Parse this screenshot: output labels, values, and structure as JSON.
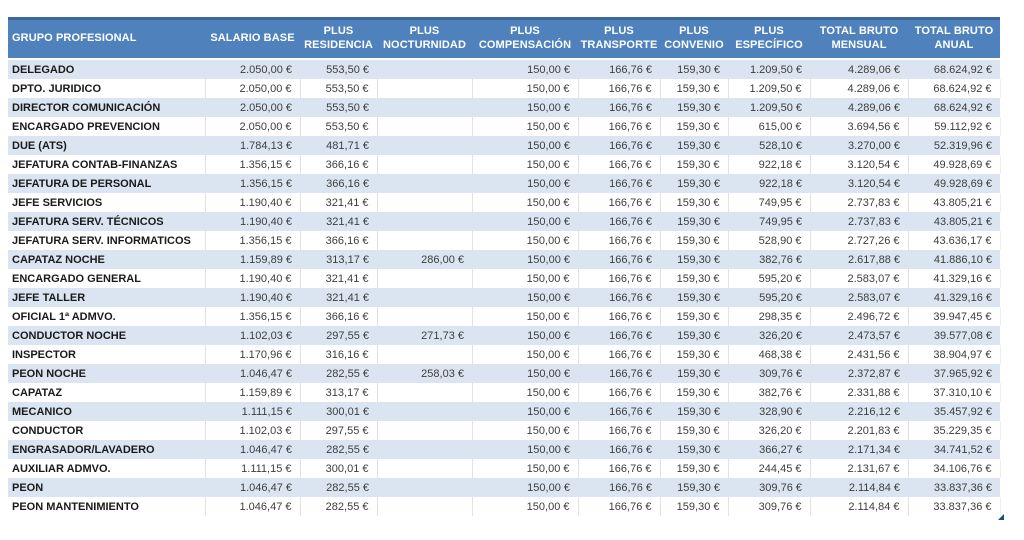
{
  "table": {
    "columns": [
      {
        "id": "grupo-profesional",
        "label": "GRUPO PROFESIONAL"
      },
      {
        "id": "salario-base",
        "label": "SALARIO BASE"
      },
      {
        "id": "plus-residencia",
        "label": "PLUS\nRESIDENCIA"
      },
      {
        "id": "plus-nocturnidad",
        "label": "PLUS\nNOCTURNIDAD"
      },
      {
        "id": "plus-compensacion",
        "label": "PLUS\nCOMPENSACIÓN"
      },
      {
        "id": "plus-transporte",
        "label": "PLUS\nTRANSPORTE"
      },
      {
        "id": "plus-convenio",
        "label": "PLUS\nCONVENIO"
      },
      {
        "id": "plus-especifico",
        "label": "PLUS\nESPECÍFICO"
      },
      {
        "id": "total-bruto-mensual",
        "label": "TOTAL BRUTO\nMENSUAL"
      },
      {
        "id": "total-bruto-anual",
        "label": "TOTAL BRUTO\nANUAL"
      }
    ],
    "rows": [
      {
        "group": "DELEGADO",
        "values": [
          "2.050,00 €",
          "553,50 €",
          "",
          "150,00 €",
          "166,76 €",
          "159,30 €",
          "1.209,50 €",
          "4.289,06 €",
          "68.624,92 €"
        ]
      },
      {
        "group": "DPTO. JURIDICO",
        "values": [
          "2.050,00 €",
          "553,50 €",
          "",
          "150,00 €",
          "166,76 €",
          "159,30 €",
          "1.209,50 €",
          "4.289,06 €",
          "68.624,92 €"
        ]
      },
      {
        "group": "DIRECTOR COMUNICACIÓN",
        "values": [
          "2.050,00 €",
          "553,50 €",
          "",
          "150,00 €",
          "166,76 €",
          "159,30 €",
          "1.209,50 €",
          "4.289,06 €",
          "68.624,92 €"
        ]
      },
      {
        "group": "ENCARGADO PREVENCION",
        "values": [
          "2.050,00 €",
          "553,50 €",
          "",
          "150,00 €",
          "166,76 €",
          "159,30 €",
          "615,00 €",
          "3.694,56 €",
          "59.112,92 €"
        ]
      },
      {
        "group": "DUE (ATS)",
        "values": [
          "1.784,13 €",
          "481,71 €",
          "",
          "150,00 €",
          "166,76 €",
          "159,30 €",
          "528,10 €",
          "3.270,00 €",
          "52.319,96 €"
        ]
      },
      {
        "group": "JEFATURA CONTAB-FINANZAS",
        "values": [
          "1.356,15 €",
          "366,16 €",
          "",
          "150,00 €",
          "166,76 €",
          "159,30 €",
          "922,18 €",
          "3.120,54 €",
          "49.928,69 €"
        ]
      },
      {
        "group": "JEFATURA DE PERSONAL",
        "values": [
          "1.356,15 €",
          "366,16 €",
          "",
          "150,00 €",
          "166,76 €",
          "159,30 €",
          "922,18 €",
          "3.120,54 €",
          "49.928,69 €"
        ]
      },
      {
        "group": "JEFE SERVICIOS",
        "values": [
          "1.190,40 €",
          "321,41 €",
          "",
          "150,00 €",
          "166,76 €",
          "159,30 €",
          "749,95 €",
          "2.737,83 €",
          "43.805,21 €"
        ]
      },
      {
        "group": "JEFATURA SERV. TÉCNICOS",
        "values": [
          "1.190,40 €",
          "321,41 €",
          "",
          "150,00 €",
          "166,76 €",
          "159,30 €",
          "749,95 €",
          "2.737,83 €",
          "43.805,21 €"
        ]
      },
      {
        "group": "JEFATURA SERV. INFORMATICOS",
        "values": [
          "1.356,15 €",
          "366,16 €",
          "",
          "150,00 €",
          "166,76 €",
          "159,30 €",
          "528,90 €",
          "2.727,26 €",
          "43.636,17 €"
        ]
      },
      {
        "group": "CAPATAZ NOCHE",
        "values": [
          "1.159,89 €",
          "313,17 €",
          "286,00 €",
          "150,00 €",
          "166,76 €",
          "159,30 €",
          "382,76 €",
          "2.617,88 €",
          "41.886,10 €"
        ]
      },
      {
        "group": "ENCARGADO GENERAL",
        "values": [
          "1.190,40 €",
          "321,41 €",
          "",
          "150,00 €",
          "166,76 €",
          "159,30 €",
          "595,20 €",
          "2.583,07 €",
          "41.329,16 €"
        ]
      },
      {
        "group": "JEFE TALLER",
        "values": [
          "1.190,40 €",
          "321,41 €",
          "",
          "150,00 €",
          "166,76 €",
          "159,30 €",
          "595,20 €",
          "2.583,07 €",
          "41.329,16 €"
        ]
      },
      {
        "group": "OFICIAL 1ª ADMVO.",
        "values": [
          "1.356,15 €",
          "366,16 €",
          "",
          "150,00 €",
          "166,76 €",
          "159,30 €",
          "298,35 €",
          "2.496,72 €",
          "39.947,45 €"
        ]
      },
      {
        "group": "CONDUCTOR NOCHE",
        "values": [
          "1.102,03 €",
          "297,55 €",
          "271,73 €",
          "150,00 €",
          "166,76 €",
          "159,30 €",
          "326,20 €",
          "2.473,57 €",
          "39.577,08 €"
        ]
      },
      {
        "group": "INSPECTOR",
        "values": [
          "1.170,96 €",
          "316,16 €",
          "",
          "150,00 €",
          "166,76 €",
          "159,30 €",
          "468,38 €",
          "2.431,56 €",
          "38.904,97 €"
        ]
      },
      {
        "group": "PEON NOCHE",
        "values": [
          "1.046,47 €",
          "282,55 €",
          "258,03 €",
          "150,00 €",
          "166,76 €",
          "159,30 €",
          "309,76 €",
          "2.372,87 €",
          "37.965,92 €"
        ]
      },
      {
        "group": "CAPATAZ",
        "values": [
          "1.159,89 €",
          "313,17 €",
          "",
          "150,00 €",
          "166,76 €",
          "159,30 €",
          "382,76 €",
          "2.331,88 €",
          "37.310,10 €"
        ]
      },
      {
        "group": "MECANICO",
        "values": [
          "1.111,15 €",
          "300,01 €",
          "",
          "150,00 €",
          "166,76 €",
          "159,30 €",
          "328,90 €",
          "2.216,12 €",
          "35.457,92 €"
        ]
      },
      {
        "group": "CONDUCTOR",
        "values": [
          "1.102,03 €",
          "297,55 €",
          "",
          "150,00 €",
          "166,76 €",
          "159,30 €",
          "326,20 €",
          "2.201,83 €",
          "35.229,35 €"
        ]
      },
      {
        "group": "ENGRASADOR/LAVADERO",
        "values": [
          "1.046,47 €",
          "282,55 €",
          "",
          "150,00 €",
          "166,76 €",
          "159,30 €",
          "366,27 €",
          "2.171,34 €",
          "34.741,52 €"
        ]
      },
      {
        "group": "AUXILIAR ADMVO.",
        "values": [
          "1.111,15 €",
          "300,01 €",
          "",
          "150,00 €",
          "166,76 €",
          "159,30 €",
          "244,45 €",
          "2.131,67 €",
          "34.106,76 €"
        ]
      },
      {
        "group": "PEON",
        "values": [
          "1.046,47 €",
          "282,55 €",
          "",
          "150,00 €",
          "166,76 €",
          "159,30 €",
          "309,76 €",
          "2.114,84 €",
          "33.837,36 €"
        ]
      },
      {
        "group": "PEON MANTENIMIENTO",
        "values": [
          "1.046,47 €",
          "282,55 €",
          "",
          "150,00 €",
          "166,76 €",
          "159,30 €",
          "309,76 €",
          "2.114,84 €",
          "33.837,36 €"
        ]
      }
    ],
    "colors": {
      "header_bg": "#4f81bd",
      "header_text": "#ffffff",
      "band_row_bg": "#dbe5f1",
      "plain_row_bg": "#ffffff",
      "resize_handle": "#1f4e79"
    }
  }
}
